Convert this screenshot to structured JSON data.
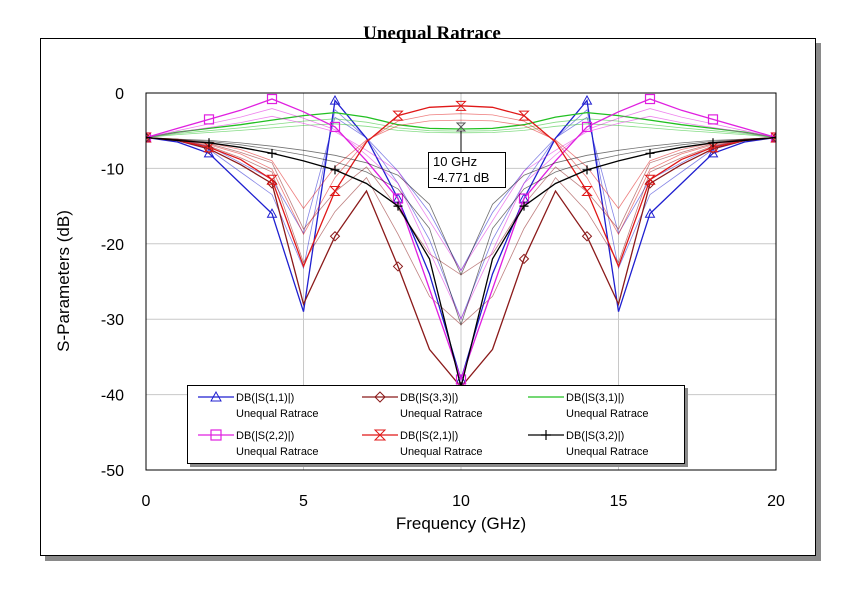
{
  "chart_data": {
    "type": "line",
    "title": "Unequal Ratrace",
    "xlabel": "Frequency (GHz)",
    "ylabel": "S-Parameters (dB)",
    "xlim": [
      0,
      20
    ],
    "ylim": [
      -50,
      0
    ],
    "x_ticks": [
      0,
      5,
      10,
      15,
      20
    ],
    "y_ticks": [
      0,
      -10,
      -20,
      -30,
      -40,
      -50
    ],
    "grid": true,
    "legend_position": "bottom-center",
    "x": [
      0,
      1,
      2,
      3,
      4,
      5,
      6,
      7,
      8,
      9,
      10,
      11,
      12,
      13,
      14,
      15,
      16,
      17,
      18,
      19,
      20
    ],
    "series": [
      {
        "name": "DB(|S(1,1)|)",
        "subtitle": "Unequal Ratrace",
        "color": "#1f1fd0",
        "marker": "triangle",
        "values": [
          -5.9,
          -6.5,
          -8,
          -12,
          -16,
          -29,
          -1,
          -6,
          -14,
          -24,
          -38,
          -24,
          -14,
          -6,
          -1,
          -29,
          -16,
          -12,
          -8,
          -6.5,
          -5.9
        ]
      },
      {
        "name": "DB(|S(3,3)|)",
        "subtitle": "Unequal Ratrace",
        "color": "#8b1a1a",
        "marker": "diamond",
        "values": [
          -5.9,
          -6.3,
          -7.4,
          -9.5,
          -12,
          -28,
          -19,
          -13,
          -23,
          -34,
          -39,
          -34,
          -22,
          -13,
          -19,
          -28,
          -12,
          -9.5,
          -7.4,
          -6.3,
          -5.9
        ]
      },
      {
        "name": "DB(|S(3,1)|)",
        "subtitle": "Unequal Ratrace",
        "color": "#22c022",
        "marker": "none",
        "values": [
          -5.9,
          -5.2,
          -4.7,
          -4.2,
          -3.6,
          -3.0,
          -2.6,
          -3.2,
          -4.2,
          -4.7,
          -4.771,
          -4.7,
          -4.2,
          -3.2,
          -2.6,
          -3.0,
          -3.6,
          -4.2,
          -4.7,
          -5.2,
          -5.9
        ]
      },
      {
        "name": "DB(|S(2,2)|)",
        "subtitle": "Unequal Ratrace",
        "color": "#e020e0",
        "marker": "square",
        "values": [
          -5.9,
          -4.7,
          -3.5,
          -2.3,
          -0.8,
          -2.5,
          -4.5,
          -9,
          -14,
          -26,
          -38,
          -26,
          -14,
          -9,
          -4.5,
          -2.5,
          -0.8,
          -2.3,
          -3.5,
          -4.7,
          -5.9
        ]
      },
      {
        "name": "DB(|S(2,1)|)",
        "subtitle": "Unequal Ratrace",
        "color": "#e01818",
        "marker": "hourglass",
        "values": [
          -5.9,
          -6.3,
          -7.2,
          -8.8,
          -11.5,
          -23,
          -13,
          -6.5,
          -3.0,
          -1.9,
          -1.7,
          -1.9,
          -3.0,
          -6.5,
          -13,
          -23,
          -11.5,
          -8.8,
          -7.2,
          -6.3,
          -5.9
        ]
      },
      {
        "name": "DB(|S(3,2)|)",
        "subtitle": "Unequal Ratrace",
        "color": "#000000",
        "marker": "cross",
        "values": [
          -5.9,
          -6.3,
          -6.6,
          -7.2,
          -8.0,
          -9.0,
          -10.2,
          -12,
          -15,
          -22,
          -39,
          -22,
          -15,
          -12,
          -10.2,
          -9.0,
          -8.0,
          -7.2,
          -6.6,
          -6.3,
          -5.9
        ]
      }
    ],
    "annotations": [
      {
        "x": 10,
        "y": -4.771,
        "text_lines": [
          "10 GHz",
          "-4.771 dB"
        ]
      }
    ]
  },
  "legend_sub_label": "Unequal Ratrace"
}
